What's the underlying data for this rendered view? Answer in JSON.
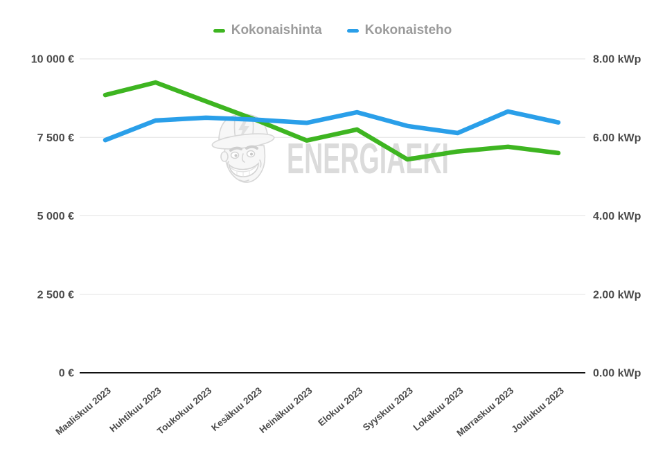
{
  "watermark": {
    "text": "ENERGIAEKI",
    "mascot_icon": "construction-worker-mascot"
  },
  "colors": {
    "background": "#ffffff",
    "grid": "#e2e2e2",
    "axis_line": "#111111",
    "tick_label": "#4a4a4a",
    "legend_text": "#9b9b9b",
    "watermark": "#d8d8d8",
    "series_price": "#3eb521",
    "series_power": "#2a9fe9"
  },
  "chart_data": {
    "type": "line",
    "title": "",
    "legend_position": "top",
    "grid": true,
    "categories": [
      "Maaliskuu 2023",
      "Huhtikuu 2023",
      "Toukokuu 2023",
      "Kesäkuu 2023",
      "Heinäkuu 2023",
      "Elokuu 2023",
      "Syyskuu 2023",
      "Lokakuu 2023",
      "Marraskuu 2023",
      "Joulukuu 2023"
    ],
    "series": [
      {
        "name": "Kokonaishinta",
        "axis": "left",
        "color": "#3eb521",
        "values": [
          8850,
          9250,
          8650,
          8050,
          7400,
          7750,
          6800,
          7050,
          7200,
          7000
        ]
      },
      {
        "name": "Kokonaisteho",
        "axis": "right",
        "color": "#2a9fe9",
        "values": [
          5.93,
          6.43,
          6.5,
          6.45,
          6.37,
          6.64,
          6.29,
          6.11,
          6.66,
          6.38
        ]
      }
    ],
    "left_axis": {
      "unit": "€",
      "min": 0,
      "max": 10000,
      "ticks": [
        {
          "value": 0,
          "label": "0 €"
        },
        {
          "value": 2500,
          "label": "2 500 €"
        },
        {
          "value": 5000,
          "label": "5 000 €"
        },
        {
          "value": 7500,
          "label": "7 500 €"
        },
        {
          "value": 10000,
          "label": "10 000 €"
        }
      ]
    },
    "right_axis": {
      "unit": "kWp",
      "min": 0,
      "max": 8,
      "ticks": [
        {
          "value": 0,
          "label": "0.00 kWp"
        },
        {
          "value": 2,
          "label": "2.00 kWp"
        },
        {
          "value": 4,
          "label": "4.00 kWp"
        },
        {
          "value": 6,
          "label": "6.00 kWp"
        },
        {
          "value": 8,
          "label": "8.00 kWp"
        }
      ]
    }
  }
}
